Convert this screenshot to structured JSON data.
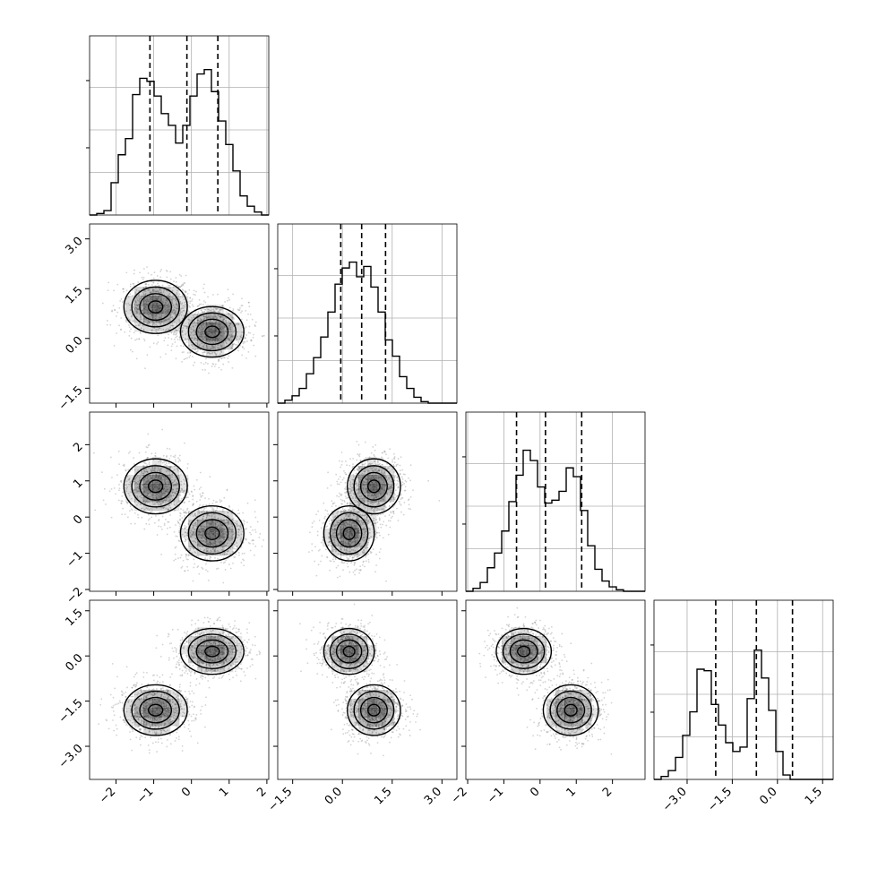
{
  "chart_data": {
    "type": "corner",
    "title": "",
    "n_params": 4,
    "parameters": [
      {
        "range": [
          -2.7,
          2.05
        ],
        "ticks": [
          -2,
          -1,
          0,
          1,
          2
        ],
        "tick_labels": [
          "−2",
          "−1",
          "0",
          "1",
          "2"
        ],
        "quantiles": [
          -1.1,
          -0.12,
          0.7
        ],
        "hist": [
          0.0,
          0.01,
          0.03,
          0.22,
          0.41,
          0.52,
          0.82,
          0.93,
          0.91,
          0.81,
          0.69,
          0.61,
          0.49,
          0.61,
          0.81,
          0.96,
          0.99,
          0.84,
          0.64,
          0.48,
          0.3,
          0.13,
          0.06,
          0.02,
          0.0
        ]
      },
      {
        "range": [
          -1.95,
          3.45
        ],
        "ticks": [
          -1.5,
          0.0,
          1.5,
          3.0
        ],
        "tick_labels": [
          "−1.5",
          "0.0",
          "1.5",
          "3.0"
        ],
        "quantiles": [
          -0.05,
          0.58,
          1.3
        ],
        "hist": [
          0.0,
          0.02,
          0.05,
          0.1,
          0.2,
          0.31,
          0.45,
          0.62,
          0.81,
          0.92,
          0.96,
          0.86,
          0.93,
          0.79,
          0.62,
          0.43,
          0.32,
          0.18,
          0.1,
          0.04,
          0.01,
          0.0,
          0.0,
          0.0,
          0.0
        ]
      },
      {
        "range": [
          -2.05,
          2.9
        ],
        "ticks": [
          -2,
          -1,
          0,
          1,
          2
        ],
        "tick_labels": [
          "−2",
          "−1",
          "0",
          "1",
          "2"
        ],
        "quantiles": [
          -0.65,
          0.15,
          1.15
        ],
        "hist": [
          0.0,
          0.02,
          0.06,
          0.16,
          0.26,
          0.41,
          0.61,
          0.79,
          0.96,
          0.89,
          0.71,
          0.6,
          0.62,
          0.68,
          0.84,
          0.78,
          0.55,
          0.31,
          0.15,
          0.07,
          0.03,
          0.01,
          0.0,
          0.0,
          0.0
        ]
      },
      {
        "range": [
          -4.1,
          1.85
        ],
        "ticks": [
          -3.0,
          -1.5,
          0.0,
          1.5
        ],
        "tick_labels": [
          "−3.0",
          "−1.5",
          "0.0",
          "1.5"
        ],
        "quantiles": [
          -2.05,
          -0.7,
          0.5
        ],
        "hist": [
          0.0,
          0.02,
          0.06,
          0.15,
          0.3,
          0.46,
          0.75,
          0.74,
          0.51,
          0.37,
          0.25,
          0.19,
          0.22,
          0.55,
          0.88,
          0.69,
          0.47,
          0.19,
          0.03,
          0.0,
          0.0,
          0.0,
          0.0,
          0.0,
          0.0
        ]
      }
    ],
    "components": [
      {
        "weight": 0.5,
        "mean": [
          -0.95,
          0.95,
          0.85,
          -1.8
        ],
        "sd": [
          0.42,
          0.4,
          0.38,
          0.42
        ]
      },
      {
        "weight": 0.5,
        "mean": [
          0.55,
          0.2,
          -0.45,
          0.15
        ],
        "sd": [
          0.42,
          0.38,
          0.38,
          0.38
        ]
      }
    ],
    "pair_correlations": {
      "0-1": -0.25
    },
    "contour_levels": 4,
    "grid": true,
    "colors": {
      "line": "#000000",
      "density": "#000000",
      "grid": "#b0b0b0",
      "points": "#808080"
    }
  }
}
